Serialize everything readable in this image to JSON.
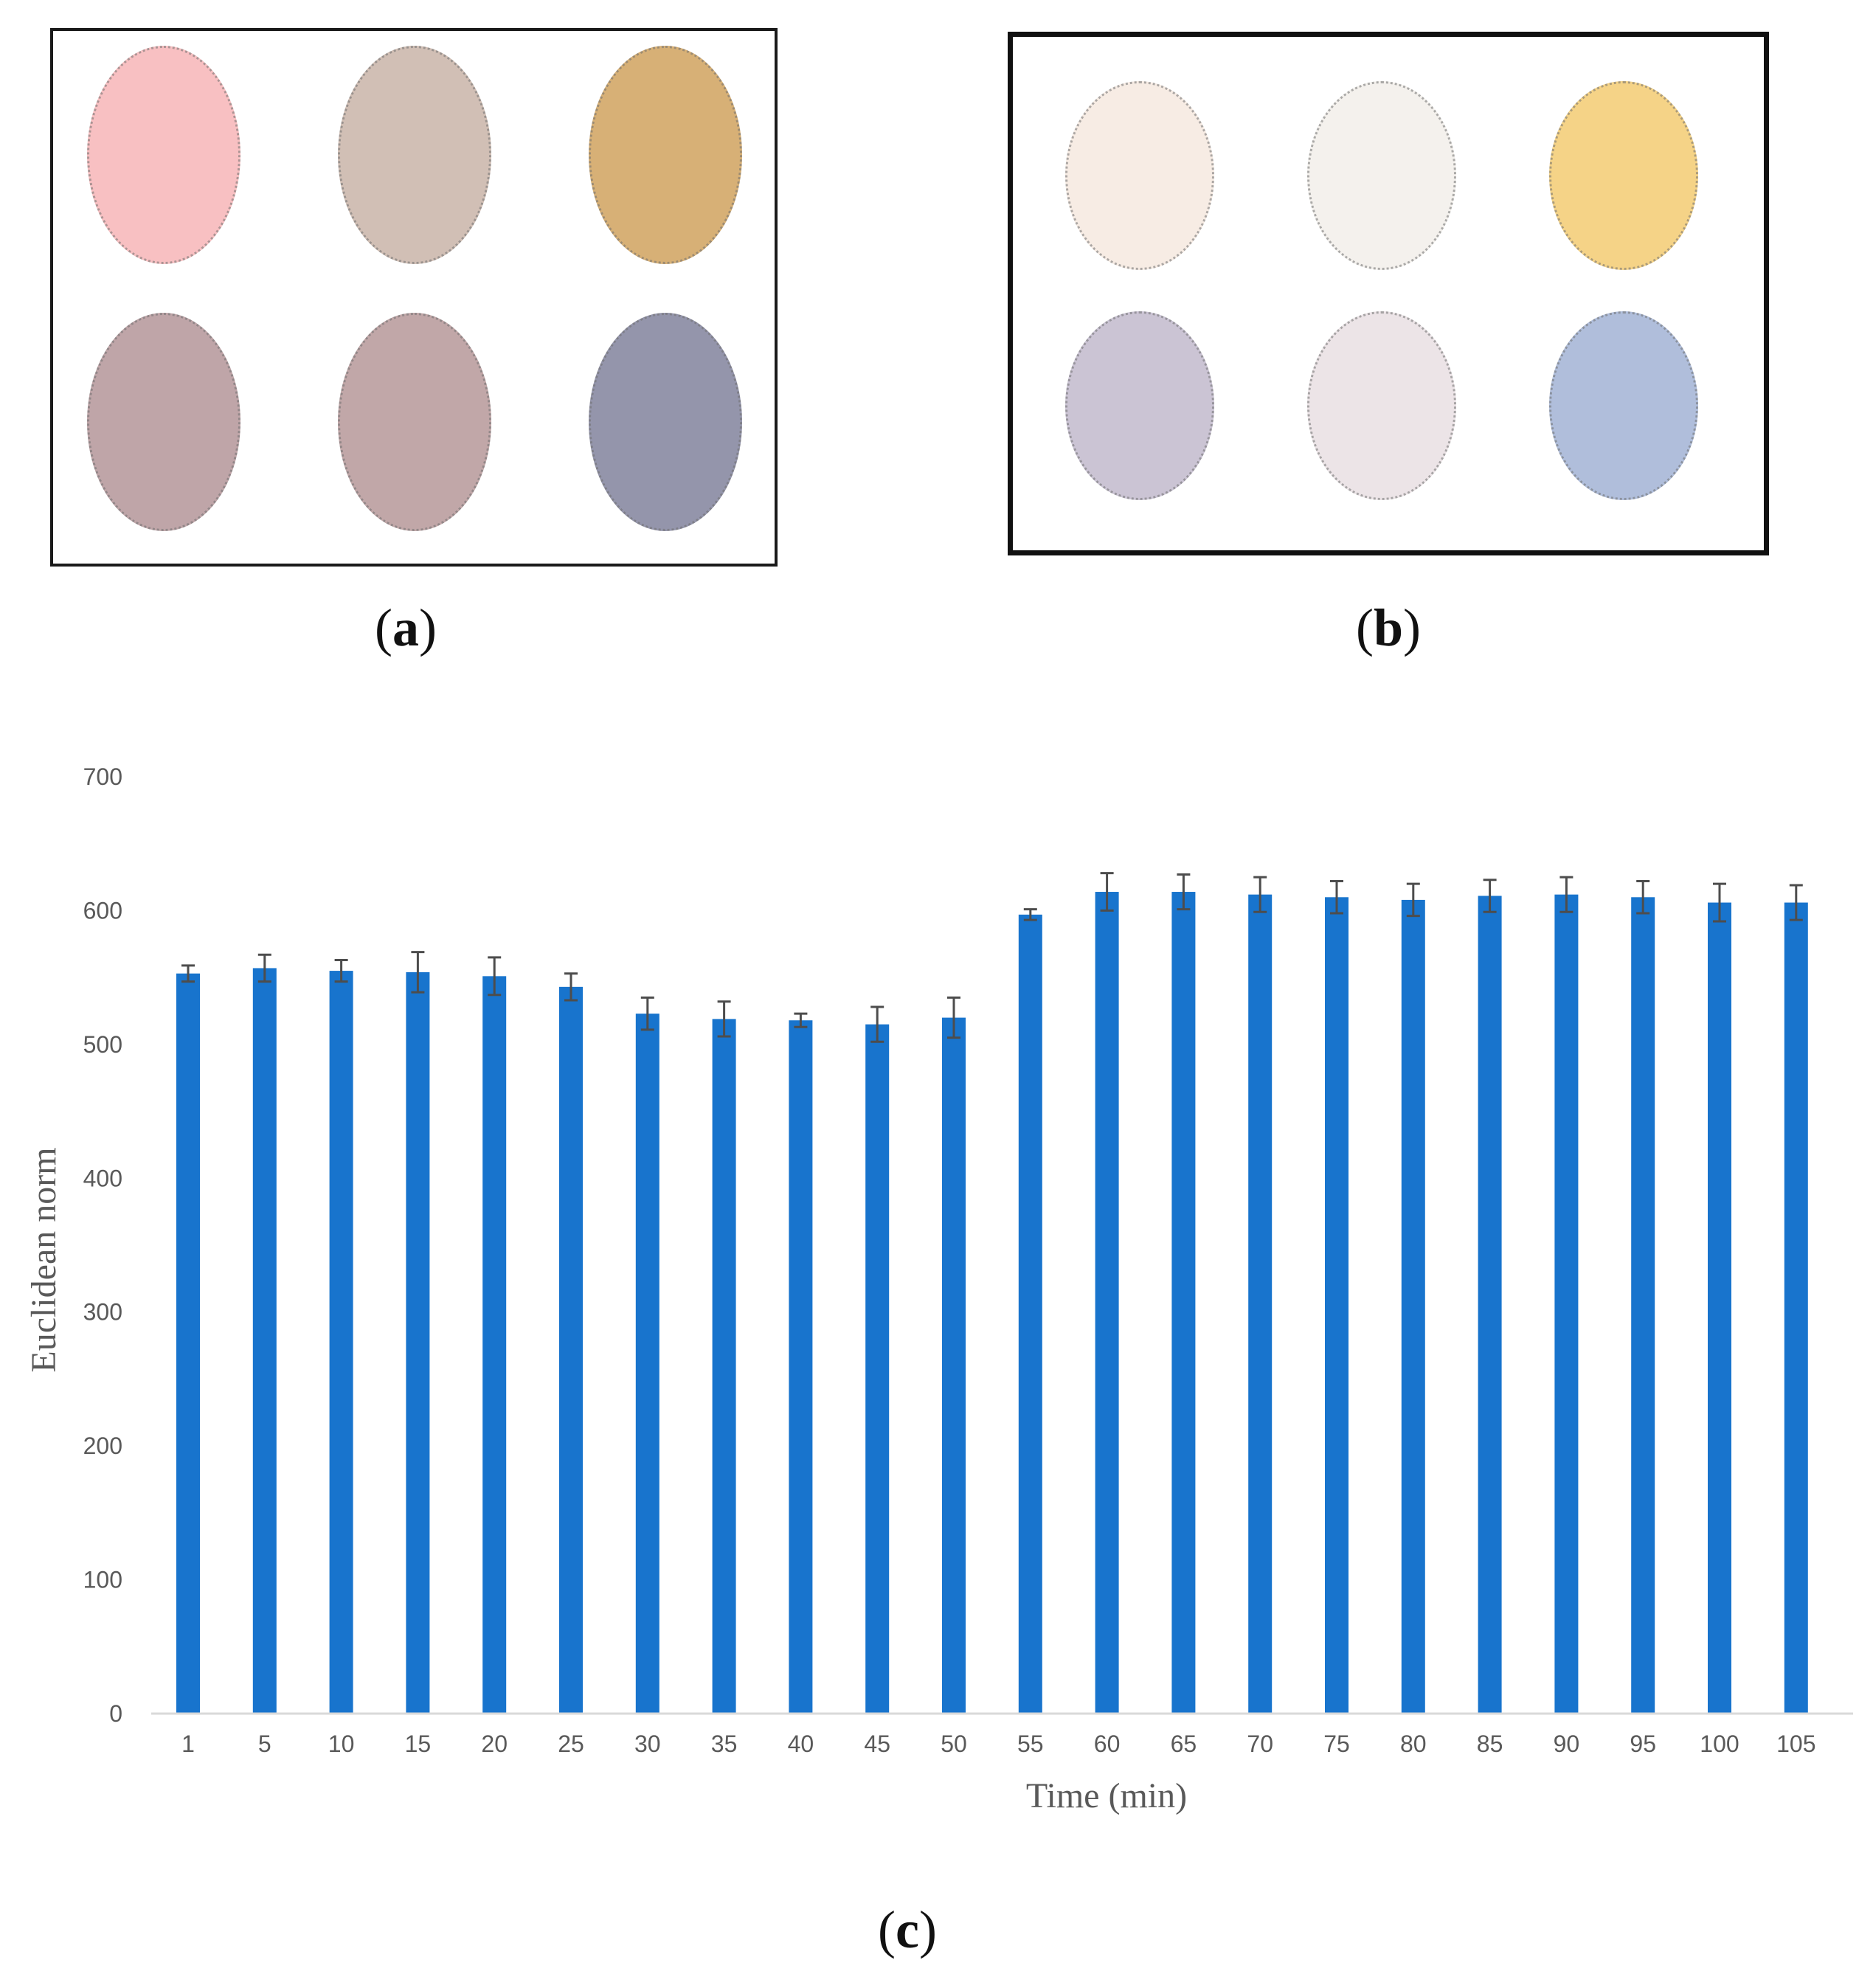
{
  "panels": {
    "a": {
      "label_open": "(",
      "label_letter": "a",
      "label_close": ")",
      "spot_colors": [
        "#f8c0c2",
        "#d1bfb5",
        "#d7b076",
        "#bfa5a8",
        "#c1a7a8",
        "#9495ab"
      ]
    },
    "b": {
      "label_open": "(",
      "label_letter": "b",
      "label_close": ")",
      "spot_colors": [
        "#f7ece4",
        "#f4f1ed",
        "#f5d387",
        "#cbc4d4",
        "#ece4e7",
        "#b0bedb"
      ]
    },
    "c": {
      "label_open": "(",
      "label_letter": "c",
      "label_close": ")"
    }
  },
  "chart_data": {
    "type": "bar",
    "title": "",
    "xlabel": "Time (min)",
    "ylabel": "Euclidean norm",
    "categories": [
      "1",
      "5",
      "10",
      "15",
      "20",
      "25",
      "30",
      "35",
      "40",
      "45",
      "50",
      "55",
      "60",
      "65",
      "70",
      "75",
      "80",
      "85",
      "90",
      "95",
      "100",
      "105"
    ],
    "series": [
      {
        "values": [
          553,
          557,
          555,
          554,
          551,
          543,
          523,
          519,
          518,
          515,
          520,
          597,
          614,
          614,
          612,
          610,
          608,
          611,
          612,
          610,
          606,
          606
        ],
        "error": [
          6,
          10,
          8,
          15,
          14,
          10,
          12,
          13,
          5,
          13,
          15,
          4,
          14,
          13,
          13,
          12,
          12,
          12,
          13,
          12,
          14,
          13
        ]
      }
    ],
    "ylim": [
      0,
      700
    ],
    "yticks": [
      0,
      100,
      200,
      300,
      400,
      500,
      600,
      700
    ],
    "bar_color": "#1874cd",
    "error_color": "#4d4d4d",
    "grid": false,
    "legend": "none"
  }
}
